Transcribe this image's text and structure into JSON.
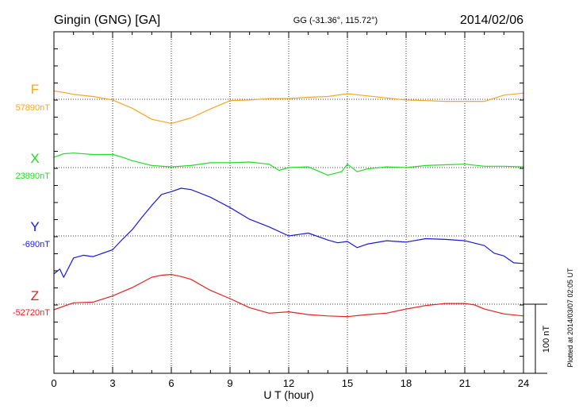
{
  "header": {
    "station": "Gingin (GNG)  [GA]",
    "coords": "GG (-31.36°, 115.72°)",
    "date": "2014/02/06"
  },
  "side_note": "Plotted at 2014/03/07 02:05 UT",
  "chart_data": {
    "type": "line",
    "xlabel": "U T (hour)",
    "xlim": [
      0,
      24
    ],
    "xticks": [
      0,
      3,
      6,
      9,
      12,
      15,
      18,
      21,
      24
    ],
    "xtick_labels": [
      "0",
      "3",
      "6",
      "9",
      "12",
      "15",
      "18",
      "21",
      "24"
    ],
    "scale_bar": {
      "value_nT": 100,
      "label": "100 nT"
    },
    "grid": true,
    "series": [
      {
        "name": "F",
        "baseline_label": "57890nT",
        "baseline_nT": 57890,
        "color": "#f5a623",
        "x": [
          0,
          0.5,
          1,
          2,
          3,
          4,
          5,
          6,
          7,
          8,
          9,
          10,
          11,
          12,
          13,
          14,
          15,
          16,
          17,
          18,
          19,
          20,
          21,
          22,
          23,
          24
        ],
        "y": [
          57902,
          57900,
          57897,
          57894,
          57889,
          57877,
          57861,
          57855,
          57863,
          57876,
          57888,
          57889,
          57891,
          57891,
          57893,
          57894,
          57898,
          57895,
          57892,
          57889,
          57888,
          57887,
          57887,
          57887,
          57896,
          57899
        ]
      },
      {
        "name": "X",
        "baseline_label": "23890nT",
        "baseline_nT": 23890,
        "color": "#22dd22",
        "x": [
          0,
          0.5,
          1,
          2,
          3,
          3.5,
          4,
          5,
          6,
          7,
          8,
          9,
          10,
          11,
          11.5,
          12,
          13,
          14,
          14.7,
          15,
          15.5,
          16,
          17,
          18,
          19,
          20,
          21,
          22,
          23,
          24
        ],
        "y": [
          23905,
          23910,
          23911,
          23909,
          23909,
          23905,
          23900,
          23893,
          23891,
          23893,
          23897,
          23897,
          23898,
          23895,
          23886,
          23890,
          23891,
          23879,
          23884,
          23895,
          23884,
          23888,
          23891,
          23890,
          23893,
          23894,
          23895,
          23892,
          23892,
          23891
        ]
      },
      {
        "name": "Y",
        "baseline_label": "-690nT",
        "baseline_nT": -690,
        "color": "#1a1adb",
        "x": [
          0,
          0.3,
          0.5,
          1,
          1.5,
          2,
          3,
          3.5,
          4,
          4.5,
          5,
          5.5,
          6,
          6.5,
          7,
          8,
          9,
          10,
          11,
          12,
          13,
          14,
          14.5,
          15,
          15.5,
          16,
          17,
          18,
          19,
          20,
          21,
          22,
          22.5,
          23,
          23.5,
          24
        ],
        "y": [
          -745,
          -738,
          -750,
          -722,
          -718,
          -720,
          -710,
          -695,
          -681,
          -663,
          -646,
          -630,
          -626,
          -621,
          -623,
          -634,
          -649,
          -666,
          -677,
          -690,
          -686,
          -696,
          -700,
          -698,
          -707,
          -702,
          -697,
          -699,
          -694,
          -695,
          -697,
          -704,
          -715,
          -719,
          -729,
          -730
        ]
      },
      {
        "name": "Z",
        "baseline_label": "-52720nT",
        "baseline_nT": -52720,
        "color": "#e62020",
        "x": [
          0,
          0.5,
          1,
          2,
          3,
          4,
          5,
          5.5,
          6,
          6.5,
          7,
          8,
          9,
          10,
          11,
          12,
          13,
          14,
          15,
          16,
          17,
          18,
          19,
          20,
          21,
          21.5,
          22,
          23,
          24
        ],
        "y": [
          -52728,
          -52723,
          -52718,
          -52717,
          -52708,
          -52696,
          -52681,
          -52678,
          -52677,
          -52680,
          -52684,
          -52700,
          -52712,
          -52725,
          -52733,
          -52731,
          -52735,
          -52737,
          -52738,
          -52735,
          -52733,
          -52727,
          -52722,
          -52719,
          -52719,
          -52721,
          -52727,
          -52734,
          -52737
        ]
      }
    ]
  }
}
